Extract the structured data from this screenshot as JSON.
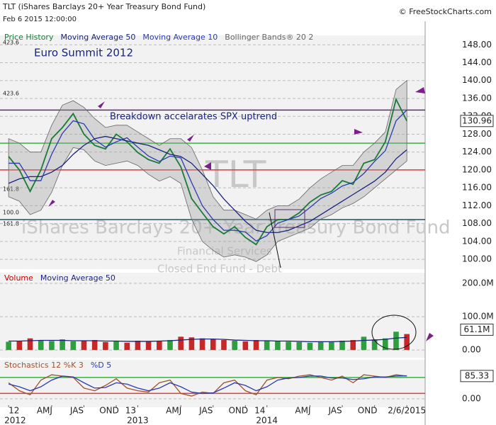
{
  "chart_data": [
    {
      "type": "line",
      "title": "TLT (iShares Barclays 20+ Year Treasury Bond Fund)",
      "date": "Feb 6 2015 12:00:00",
      "source": "© FreeStockCharts.com",
      "categories": [
        "12",
        null,
        null,
        null,
        "AMJ",
        null,
        null,
        "JAS",
        null,
        null,
        "OND",
        null,
        "13",
        null,
        null,
        null,
        "AMJ",
        null,
        null,
        "JAS",
        null,
        null,
        "OND",
        null,
        "14",
        null,
        null,
        null,
        "AMJ",
        null,
        null,
        "JAS",
        null,
        null,
        "OND",
        null,
        null,
        "2/6/2015"
      ],
      "year_labels": [
        {
          "at": 0,
          "label": "2012"
        },
        {
          "at": 12,
          "label": "2013"
        },
        {
          "at": 24,
          "label": "2014"
        }
      ],
      "xlim": [
        -0.8,
        38.7
      ],
      "ylim": [
        97.8,
        150.1
      ],
      "yticks": [
        {
          "value": 100,
          "label": "100.00"
        },
        {
          "value": 104,
          "label": "104.00"
        },
        {
          "value": 108,
          "label": "108.00"
        },
        {
          "value": 112,
          "label": "112.00"
        },
        {
          "value": 116,
          "label": "116.00"
        },
        {
          "value": 120,
          "label": "120.00"
        },
        {
          "value": 124,
          "label": "124.00"
        },
        {
          "value": 128,
          "label": "128.00"
        },
        {
          "value": 132,
          "label": "132.00"
        },
        {
          "value": 136,
          "label": "136.00"
        },
        {
          "value": 140,
          "label": "140.00"
        },
        {
          "value": 144,
          "label": "144.00"
        },
        {
          "value": 148,
          "label": "148.00"
        }
      ],
      "grid": true,
      "series": [
        {
          "name": "Price History",
          "color": "#1b7a3a",
          "values": [
            123,
            120,
            115.2,
            120,
            127,
            129.5,
            132.6,
            128,
            125.5,
            124.7,
            128,
            126.3,
            123.9,
            122.3,
            121.5,
            124.7,
            120.7,
            113.6,
            110.4,
            107.3,
            105.7,
            107.3,
            104.9,
            103.3,
            107.3,
            108.9,
            108.9,
            110.4,
            112.8,
            114.4,
            115.2,
            117.6,
            116.8,
            121.5,
            122.3,
            126.3,
            135.8,
            130.96
          ]
        },
        {
          "name": "Moving Average 50",
          "color": "#1a237e",
          "values": [
            117,
            118,
            118.5,
            118.5,
            119.5,
            121,
            123.5,
            125.5,
            127,
            127.5,
            127,
            126.5,
            126,
            125.5,
            124.5,
            123.5,
            123,
            121.5,
            119,
            116.5,
            113.5,
            111,
            108.5,
            106.5,
            106,
            106,
            106.5,
            107.5,
            108.5,
            110,
            111.5,
            113,
            114.5,
            116,
            117.5,
            119.5,
            122.5,
            124.5
          ]
        },
        {
          "name": "Moving Average 10",
          "color": "#2b3bb0",
          "values": [
            121.5,
            121.5,
            117.6,
            117.6,
            123.5,
            128.2,
            131,
            130.3,
            126.8,
            125.1,
            126.3,
            127.2,
            125.1,
            123.1,
            121.9,
            123.1,
            122.7,
            117.2,
            112,
            108.9,
            106.5,
            106.5,
            106.1,
            104.1,
            105.3,
            108.1,
            108.9,
            109.7,
            111.6,
            113.6,
            114.8,
            116.4,
            117.2,
            119.2,
            121.9,
            124.3,
            131,
            133.4
          ]
        }
      ],
      "band": {
        "name": "Bollinger Bands® 20 2",
        "color": "#666666",
        "upper": [
          127,
          126,
          124,
          124,
          130,
          134.5,
          135.5,
          134,
          131.5,
          129.5,
          130,
          130,
          128.5,
          127,
          125.5,
          127,
          127,
          125,
          120,
          114,
          111,
          111,
          110,
          109,
          111,
          112,
          112,
          113.5,
          116,
          118,
          119.5,
          121,
          121,
          124,
          126,
          128.5,
          138,
          140
        ],
        "lower": [
          114,
          113,
          110,
          111,
          115,
          121,
          125,
          124.5,
          122,
          121,
          121.5,
          122,
          121,
          119,
          117.5,
          118.5,
          117,
          109,
          104,
          102,
          100.5,
          101,
          100.5,
          99.5,
          101,
          104,
          105,
          106,
          107,
          109,
          110,
          111.5,
          112.5,
          114,
          116,
          118,
          120,
          122
        ]
      },
      "levels": [
        {
          "value": 133.4,
          "color": "#5b2c6f"
        },
        {
          "value": 126,
          "color": "#3cb043"
        },
        {
          "value": 120,
          "color": "#e53935"
        },
        {
          "value": 108.9,
          "color": "#1f4f5f"
        }
      ],
      "annotations": [
        "Euro Summit 2012",
        "Breakdown accelarates SPX uptrend"
      ],
      "watermark": [
        "TLT",
        "iShares Barclays 20+ Year Treasury Bond Fund",
        "Financial Services",
        "Closed End Fund - Debt"
      ],
      "fib_labels": [
        "423.6",
        "423.6",
        "161.8",
        "161.8",
        "100.0"
      ]
    },
    {
      "type": "bar",
      "ylim": [
        -23,
        232
      ],
      "yticks": [
        {
          "value": 0,
          "label": "0.00"
        },
        {
          "value": 100,
          "label": "100.0M"
        },
        {
          "value": 200,
          "label": "200.0M"
        }
      ],
      "grid": true,
      "up_color": "#2e9e3e",
      "down_color": "#c62828",
      "series": [
        {
          "name": "Volume",
          "color": "#c00000",
          "style": "bar",
          "values": [
            25,
            28,
            35,
            30,
            27,
            32,
            26,
            28,
            30,
            24,
            26,
            22,
            28,
            25,
            27,
            30,
            40,
            38,
            35,
            33,
            30,
            28,
            26,
            30,
            28,
            27,
            25,
            24,
            22,
            26,
            25,
            28,
            30,
            40,
            32,
            35,
            55,
            48
          ]
        },
        {
          "name": "Moving Average 50",
          "color": "#1a237e",
          "style": "line",
          "values": [
            27,
            27,
            28,
            29,
            29,
            29,
            28,
            28,
            28,
            27,
            27,
            26,
            26,
            26,
            27,
            28,
            30,
            32,
            33,
            33,
            32,
            30,
            29,
            28,
            28,
            27,
            27,
            26,
            25,
            25,
            25,
            26,
            27,
            29,
            30,
            32,
            36,
            38
          ]
        }
      ],
      "last_label": {
        "value": 61.1,
        "label": "61.1M"
      }
    },
    {
      "type": "line",
      "ylim": [
        -32,
        146
      ],
      "yticks": [
        {
          "value": 0,
          "label": "0.00"
        }
      ],
      "grid": true,
      "levels": [
        {
          "value": 80,
          "color": "#3cb043"
        },
        {
          "value": 20,
          "color": "#e53935"
        }
      ],
      "series": [
        {
          "name": "Stochastics 12 %K 3",
          "color": "#a0522d",
          "values": [
            60,
            30,
            15,
            70,
            90,
            85,
            80,
            40,
            30,
            50,
            75,
            40,
            30,
            25,
            60,
            70,
            20,
            10,
            25,
            20,
            60,
            70,
            30,
            15,
            70,
            80,
            75,
            85,
            90,
            80,
            70,
            85,
            60,
            90,
            85,
            80,
            90,
            85.33
          ]
        },
        {
          "name": "%D 5",
          "color": "#2b3bb0",
          "values": [
            55,
            45,
            30,
            45,
            70,
            85,
            82,
            60,
            40,
            42,
            60,
            55,
            40,
            30,
            40,
            60,
            45,
            25,
            20,
            22,
            40,
            60,
            50,
            30,
            45,
            70,
            78,
            80,
            85,
            85,
            78,
            78,
            72,
            75,
            82,
            82,
            85,
            86
          ]
        }
      ]
    }
  ]
}
